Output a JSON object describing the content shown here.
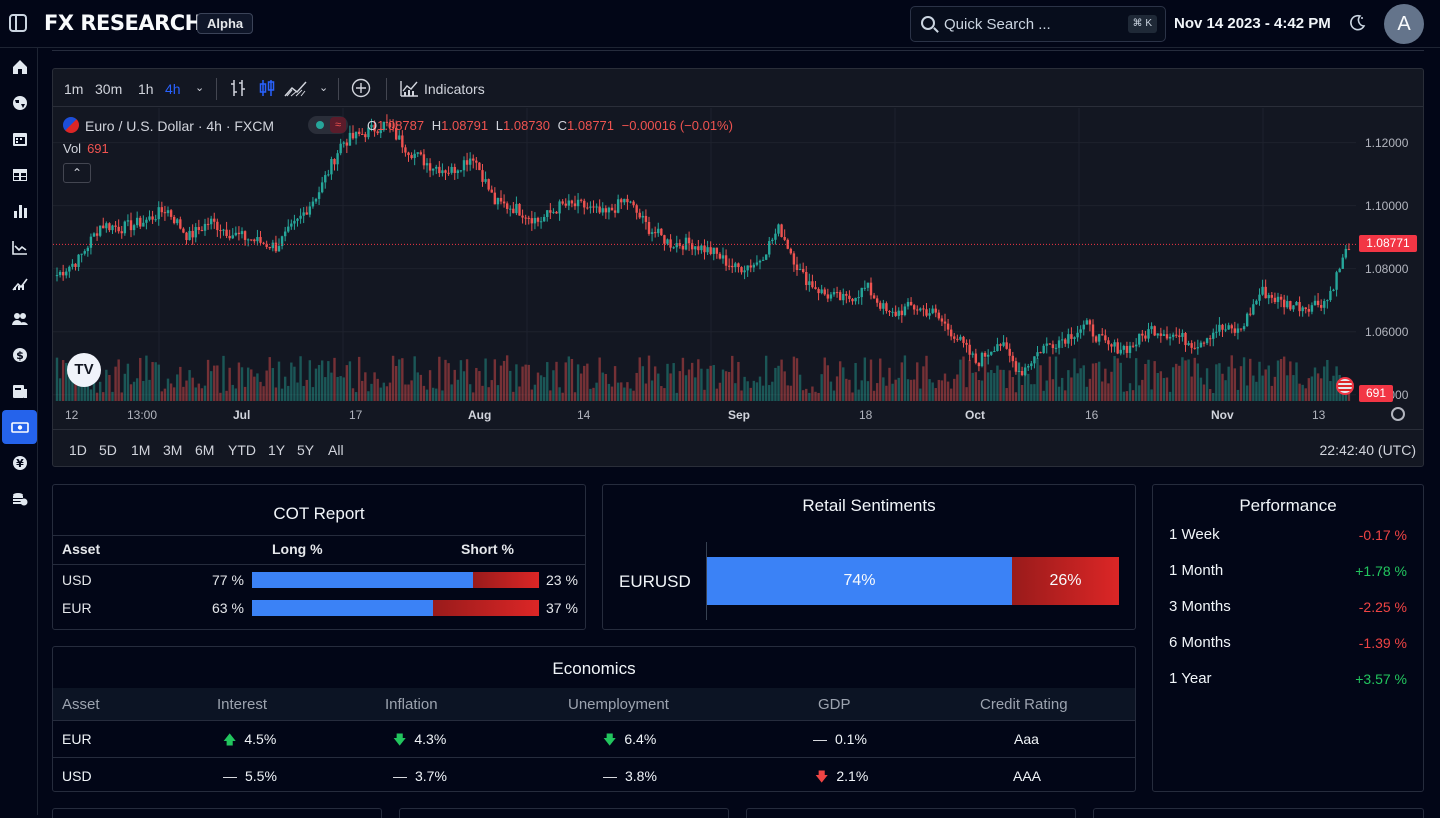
{
  "header": {
    "logo": "FX RESEARCH",
    "badge": "Alpha",
    "search_placeholder": "Quick Search ...",
    "search_shortcut": "⌘ K",
    "datetime": "Nov 14 2023 - 4:42 PM",
    "avatar_initial": "A"
  },
  "sidebar": {
    "items": [
      {
        "icon": "home-icon"
      },
      {
        "icon": "globe-icon"
      },
      {
        "icon": "calendar-icon"
      },
      {
        "icon": "table-icon"
      },
      {
        "icon": "bar-chart-icon"
      },
      {
        "icon": "line-chart-icon"
      },
      {
        "icon": "trend-chart-icon"
      },
      {
        "icon": "users-icon"
      },
      {
        "icon": "dollar-icon"
      },
      {
        "icon": "news-icon"
      },
      {
        "icon": "banknote-icon",
        "active": true
      },
      {
        "icon": "yen-icon"
      },
      {
        "icon": "coins-icon"
      }
    ]
  },
  "chart_toolbar": {
    "timeframes": [
      "1m",
      "30m",
      "1h",
      "4h"
    ],
    "active_timeframe": "4h",
    "indicators_label": "Indicators"
  },
  "chart_legend": {
    "symbol": "Euro / U.S. Dollar · 4h · FXCM",
    "open_label": "O",
    "open": "1.08787",
    "high_label": "H",
    "high": "1.08791",
    "low_label": "L",
    "low": "1.08730",
    "close_label": "C",
    "close": "1.08771",
    "change": "−0.00016 (−0.01%)",
    "vol_label": "Vol",
    "vol_value": "691"
  },
  "chart_data": {
    "type": "candlestick",
    "title": "Euro / U.S. Dollar · 4h · FXCM",
    "x_tick_labels": [
      "12",
      "13:00",
      "Jul",
      "17",
      "Aug",
      "14",
      "Sep",
      "18",
      "Oct",
      "16",
      "Nov",
      "13"
    ],
    "x_tick_bold": [
      "Jul",
      "Aug",
      "Sep",
      "Oct",
      "Nov"
    ],
    "y_tick_labels": [
      "1.12000",
      "1.10000",
      "1.08000",
      "1.06000",
      "1.04000"
    ],
    "ylim": [
      1.038,
      1.131
    ],
    "last_price": 1.08771,
    "last_price_label": "1.08771",
    "last_volume_label": "691",
    "close_path": [
      {
        "x": "Jun 12",
        "y": 1.078
      },
      {
        "x": "Jun 14",
        "y": 1.083
      },
      {
        "x": "Jun 16",
        "y": 1.094
      },
      {
        "x": "Jun 19",
        "y": 1.093
      },
      {
        "x": "Jun 21",
        "y": 1.095
      },
      {
        "x": "Jun 22",
        "y": 1.099
      },
      {
        "x": "Jun 26",
        "y": 1.09
      },
      {
        "x": "Jun 28",
        "y": 1.095
      },
      {
        "x": "Jun 30",
        "y": 1.091
      },
      {
        "x": "Jul 3",
        "y": 1.089
      },
      {
        "x": "Jul 6",
        "y": 1.087
      },
      {
        "x": "Jul 7",
        "y": 1.095
      },
      {
        "x": "Jul 11",
        "y": 1.105
      },
      {
        "x": "Jul 13",
        "y": 1.12
      },
      {
        "x": "Jul 14",
        "y": 1.123
      },
      {
        "x": "Jul 17",
        "y": 1.126
      },
      {
        "x": "Jul 19",
        "y": 1.118
      },
      {
        "x": "Jul 21",
        "y": 1.113
      },
      {
        "x": "Jul 24",
        "y": 1.111
      },
      {
        "x": "Jul 26",
        "y": 1.116
      },
      {
        "x": "Jul 27",
        "y": 1.101
      },
      {
        "x": "Jul 31",
        "y": 1.099
      },
      {
        "x": "Aug 2",
        "y": 1.095
      },
      {
        "x": "Aug 4",
        "y": 1.1
      },
      {
        "x": "Aug 7",
        "y": 1.1
      },
      {
        "x": "Aug 9",
        "y": 1.097
      },
      {
        "x": "Aug 11",
        "y": 1.102
      },
      {
        "x": "Aug 14",
        "y": 1.093
      },
      {
        "x": "Aug 16",
        "y": 1.088
      },
      {
        "x": "Aug 18",
        "y": 1.088
      },
      {
        "x": "Aug 22",
        "y": 1.085
      },
      {
        "x": "Aug 24",
        "y": 1.08
      },
      {
        "x": "Aug 28",
        "y": 1.082
      },
      {
        "x": "Aug 30",
        "y": 1.093
      },
      {
        "x": "Sep 1",
        "y": 1.078
      },
      {
        "x": "Sep 5",
        "y": 1.072
      },
      {
        "x": "Sep 7",
        "y": 1.07
      },
      {
        "x": "Sep 11",
        "y": 1.074
      },
      {
        "x": "Sep 14",
        "y": 1.065
      },
      {
        "x": "Sep 18",
        "y": 1.068
      },
      {
        "x": "Sep 21",
        "y": 1.066
      },
      {
        "x": "Sep 25",
        "y": 1.059
      },
      {
        "x": "Sep 27",
        "y": 1.05
      },
      {
        "x": "Sep 29",
        "y": 1.057
      },
      {
        "x": "Oct 3",
        "y": 1.047
      },
      {
        "x": "Oct 5",
        "y": 1.055
      },
      {
        "x": "Oct 9",
        "y": 1.058
      },
      {
        "x": "Oct 12",
        "y": 1.062
      },
      {
        "x": "Oct 16",
        "y": 1.055
      },
      {
        "x": "Oct 18",
        "y": 1.055
      },
      {
        "x": "Oct 20",
        "y": 1.061
      },
      {
        "x": "Oct 24",
        "y": 1.059
      },
      {
        "x": "Oct 26",
        "y": 1.056
      },
      {
        "x": "Oct 30",
        "y": 1.061
      },
      {
        "x": "Nov 1",
        "y": 1.06
      },
      {
        "x": "Nov 3",
        "y": 1.073
      },
      {
        "x": "Nov 7",
        "y": 1.069
      },
      {
        "x": "Nov 9",
        "y": 1.068
      },
      {
        "x": "Nov 13",
        "y": 1.07
      },
      {
        "x": "Nov 14",
        "y": 1.0877
      }
    ]
  },
  "range_bar": {
    "ranges": [
      "1D",
      "5D",
      "1M",
      "3M",
      "6M",
      "YTD",
      "1Y",
      "5Y",
      "All"
    ],
    "clock": "22:42:40 (UTC)"
  },
  "cot": {
    "title": "COT Report",
    "headers": {
      "asset": "Asset",
      "long": "Long %",
      "short": "Short %"
    },
    "rows": [
      {
        "asset": "USD",
        "long": 77,
        "long_label": "77 %",
        "short_label": "23 %"
      },
      {
        "asset": "EUR",
        "long": 63,
        "long_label": "63 %",
        "short_label": "37 %"
      }
    ]
  },
  "sentiment": {
    "title": "Retail Sentiments",
    "pair": "EURUSD",
    "long": 74,
    "long_label": "74%",
    "short_label": "26%"
  },
  "performance": {
    "title": "Performance",
    "rows": [
      {
        "label": "1 Week",
        "value": "-0.17 %",
        "dir": "neg"
      },
      {
        "label": "1 Month",
        "value": "+1.78 %",
        "dir": "pos"
      },
      {
        "label": "3 Months",
        "value": "-2.25 %",
        "dir": "neg"
      },
      {
        "label": "6 Months",
        "value": "-1.39 %",
        "dir": "neg"
      },
      {
        "label": "1 Year",
        "value": "+3.57 %",
        "dir": "pos"
      }
    ]
  },
  "economics": {
    "title": "Economics",
    "headers": [
      "Asset",
      "Interest",
      "Inflation",
      "Unemployment",
      "GDP",
      "Credit Rating"
    ],
    "rows": [
      {
        "asset": "EUR",
        "interest": "4.5%",
        "interest_dir": "up",
        "inflation": "4.3%",
        "inflation_dir": "down",
        "unemployment": "6.4%",
        "unemployment_dir": "down",
        "gdp": "0.1%",
        "gdp_dir": "flat",
        "rating": "Aaa"
      },
      {
        "asset": "USD",
        "interest": "5.5%",
        "interest_dir": "flat",
        "inflation": "3.7%",
        "inflation_dir": "flat",
        "unemployment": "3.8%",
        "unemployment_dir": "flat",
        "gdp": "2.1%",
        "gdp_dir": "down-red",
        "rating": "AAA"
      }
    ]
  },
  "colors": {
    "up": "#26a69a",
    "down": "#ef5350",
    "accent": "#2563eb",
    "long": "#3b82f6",
    "short": "#dc2626"
  }
}
